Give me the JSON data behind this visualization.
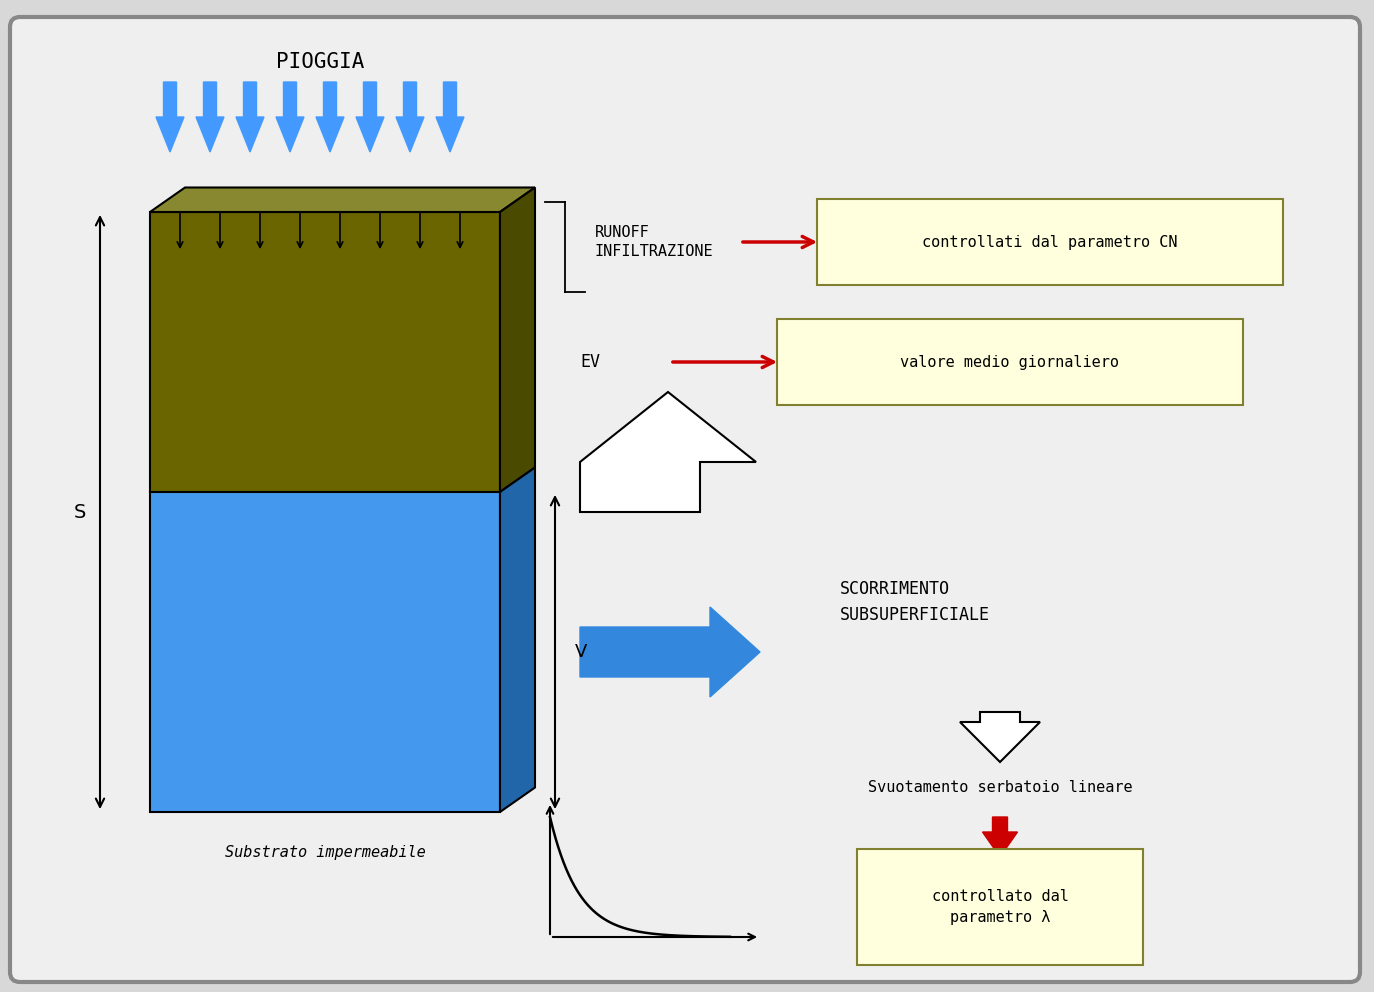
{
  "background_color": "#d8d8d8",
  "panel_bg": "#efefef",
  "title_pioggia": "PIOGGIA",
  "soil_color": "#6b6500",
  "water_color": "#4499ee",
  "outline_color": "#000000",
  "box_border_color": "#808030",
  "box_fill_color": "#ffffdd",
  "text_color": "#000000",
  "rain_arrow_color": "#4499ff",
  "red_arrow_color": "#cc0000",
  "blue_arrow_color": "#3388dd",
  "label_S": "S",
  "label_V": "V",
  "label_runoff": "RUNOFF\nINFILTRAZIONE",
  "label_ev": "EV",
  "label_substrato": "Substrato impermeabile",
  "label_scorrimento": "SCORRIMENTO\nSUBSUPERFICIALE",
  "label_svuotamento": "Svuotamento serbatoio lineare",
  "box1_text": "controllati dal parametro CN",
  "box2_text": "valore medio giornaliero",
  "box3_text": "controllato dal\nparametro λ"
}
